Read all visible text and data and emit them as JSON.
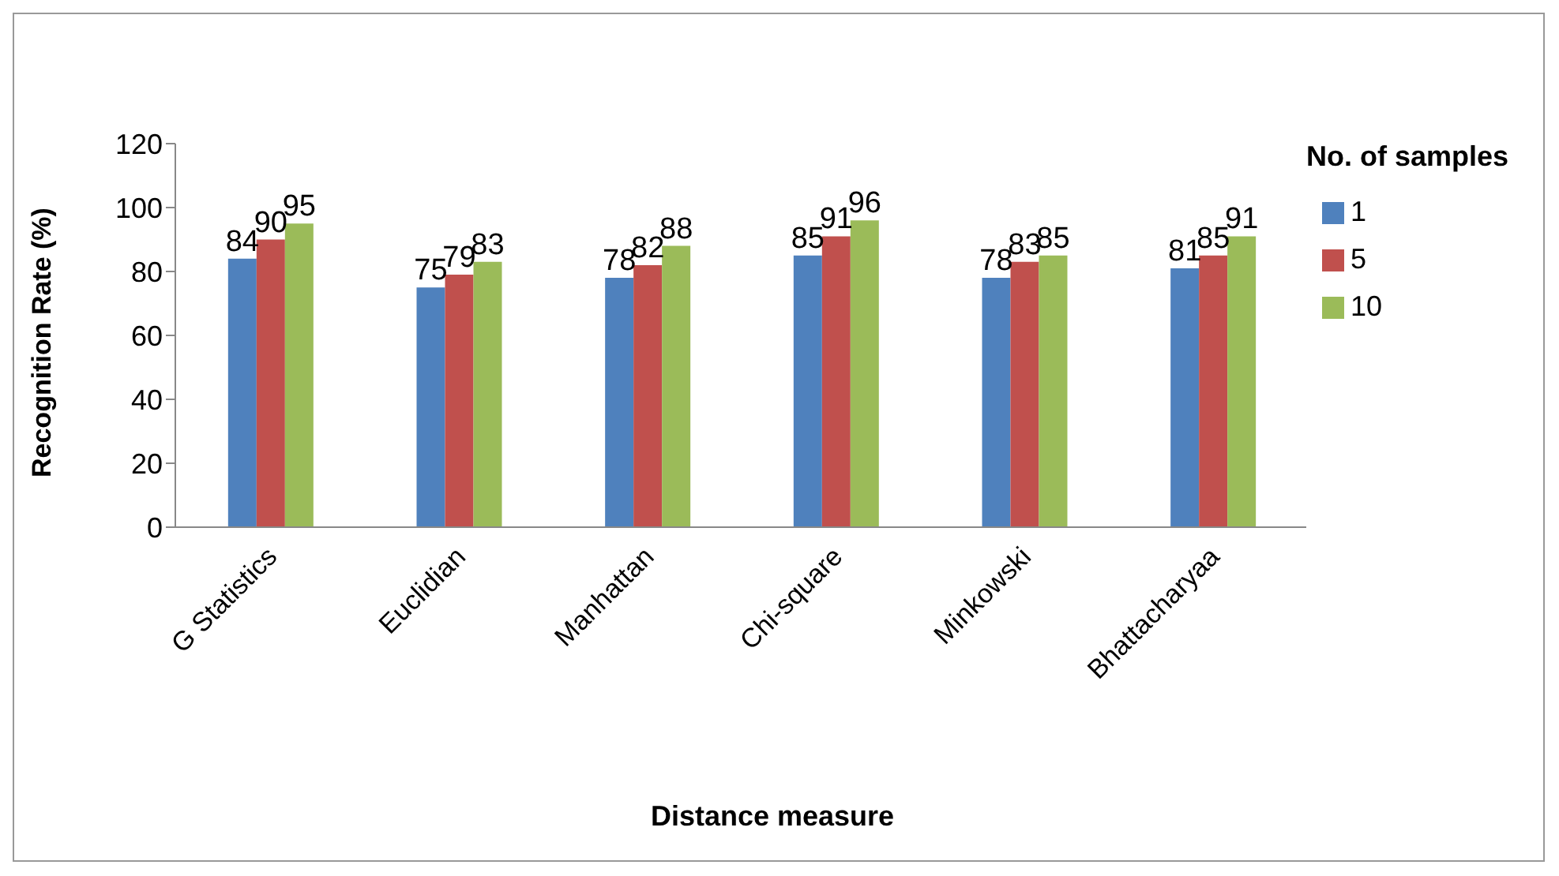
{
  "chart_data": {
    "type": "bar",
    "xlabel": "Distance measure",
    "ylabel": "Recognition Rate (%)",
    "legend_title": "No. of samples",
    "categories": [
      "G Statistics",
      "Euclidian",
      "Manhattan",
      "Chi-square",
      "Minkowski",
      "Bhattacharyaa"
    ],
    "series": [
      {
        "name": "1",
        "color": "#4f81bd",
        "values": [
          84,
          75,
          78,
          85,
          78,
          81
        ]
      },
      {
        "name": "5",
        "color": "#c0504d",
        "values": [
          90,
          79,
          82,
          91,
          83,
          85
        ]
      },
      {
        "name": "10",
        "color": "#9bbb59",
        "values": [
          95,
          83,
          88,
          96,
          85,
          91
        ]
      }
    ],
    "ylim": [
      0,
      120
    ],
    "yticks": [
      0,
      20,
      40,
      60,
      80,
      100,
      120
    ],
    "grid": false,
    "legend": "right",
    "data_labels": true
  }
}
